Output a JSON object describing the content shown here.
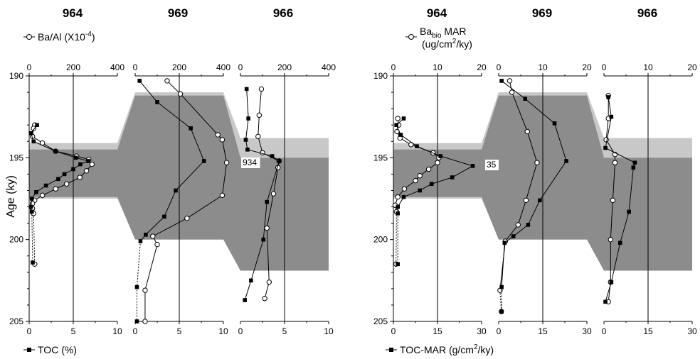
{
  "panels": [
    {
      "id": "left",
      "sites": [
        "964",
        "969",
        "966"
      ],
      "top_legend": {
        "marker": "open-circle",
        "text": "Ba/Al (X10",
        "sup": "-4",
        "tail": ")"
      },
      "bottom_legend": {
        "marker": "filled-square",
        "text": "TOC (%)"
      },
      "y_axis_label": "Age (ky)",
      "y_ticks": [
        "190",
        "195",
        "200",
        "205"
      ],
      "top_ticks": [
        [
          "0",
          "200",
          "400"
        ],
        [
          "0",
          "200",
          "400"
        ],
        [
          "0",
          "200",
          "400"
        ]
      ],
      "bottom_ticks": [
        [
          "0",
          "5",
          "10"
        ],
        [
          "0",
          "5",
          "10"
        ],
        [
          "0",
          "5",
          "10"
        ]
      ],
      "label_box": "934"
    },
    {
      "id": "right",
      "sites": [
        "964",
        "969",
        "966"
      ],
      "top_legend": {
        "marker": "open-circle",
        "text": "Ba",
        "sub": "bio",
        "text2": " MAR",
        "line2": "(ug/cm",
        "sup2": "2",
        "line2b": "/ky)"
      },
      "bottom_legend": {
        "marker": "filled-square",
        "text": "TOC-MAR (g/cm",
        "sup": "2",
        "tail": "/ky)"
      },
      "y_ticks": [
        "190",
        "195",
        "200",
        "205"
      ],
      "top_ticks": [
        [
          "0",
          "10",
          "20"
        ],
        [
          "0",
          "10",
          "20"
        ],
        [
          "0",
          "10",
          "20"
        ]
      ],
      "bottom_ticks": [
        [
          "0",
          "15",
          "30"
        ],
        [
          "0",
          "15",
          "30"
        ],
        [
          "0",
          "15",
          "30"
        ]
      ],
      "label_box": "35"
    }
  ],
  "chart_data": [
    {
      "type": "line",
      "title": "",
      "ylabel": "Age (ky)",
      "ylim": [
        190,
        205
      ],
      "y_inverted": true,
      "shading": {
        "light_gray_band_ky": [
          [
            194.2,
            194.5
          ],
          [
            194.2,
            195.5
          ]
        ],
        "dark_gray_sapropel": true
      },
      "subplots": [
        {
          "site": "964",
          "top_axis": {
            "label": "Ba/Al (X10^-4)",
            "range": [
              0,
              400
            ]
          },
          "bottom_axis": {
            "label": "TOC (%)",
            "range": [
              0,
              10
            ]
          },
          "ba_al": [
            [
              193.0,
              25
            ],
            [
              193.2,
              20
            ],
            [
              193.7,
              15
            ],
            [
              194.1,
              60
            ],
            [
              194.6,
              120
            ],
            [
              194.9,
              215
            ],
            [
              195.1,
              270
            ],
            [
              195.4,
              285
            ],
            [
              195.8,
              260
            ],
            [
              196.2,
              230
            ],
            [
              196.6,
              170
            ],
            [
              196.9,
              120
            ],
            [
              197.3,
              60
            ],
            [
              197.6,
              25
            ],
            [
              197.8,
              15
            ],
            [
              198.1,
              15
            ],
            [
              198.4,
              20
            ],
            [
              201.5,
              25
            ]
          ],
          "toc": [
            [
              193.0,
              0.9
            ],
            [
              193.5,
              0.2
            ],
            [
              194.0,
              0.5
            ],
            [
              194.6,
              3.0
            ],
            [
              195.0,
              5.3
            ],
            [
              195.2,
              6.7
            ],
            [
              195.4,
              5.8
            ],
            [
              195.7,
              5.0
            ],
            [
              196.0,
              4.0
            ],
            [
              196.3,
              3.3
            ],
            [
              196.7,
              1.9
            ],
            [
              197.1,
              0.8
            ],
            [
              197.5,
              0.3
            ],
            [
              198.0,
              0.2
            ],
            [
              198.3,
              0.3
            ],
            [
              201.4,
              0.4
            ]
          ]
        },
        {
          "site": "969",
          "top_axis": {
            "label": "Ba/Al (X10^-4)",
            "range": [
              0,
              400
            ]
          },
          "bottom_axis": {
            "label": "TOC (%)",
            "range": [
              0,
              10
            ]
          },
          "ba_al": [
            [
              190.3,
              145
            ],
            [
              191.1,
              205
            ],
            [
              193.6,
              375
            ],
            [
              193.9,
              395
            ],
            [
              195.3,
              415
            ],
            [
              197.3,
              395
            ],
            [
              198.7,
              235
            ],
            [
              199.8,
              80
            ],
            [
              200.3,
              100
            ],
            [
              203.1,
              45
            ],
            [
              205.0,
              45
            ]
          ],
          "toc": [
            [
              190.3,
              0.5
            ],
            [
              191.6,
              2.5
            ],
            [
              193.2,
              6.3
            ],
            [
              195.2,
              7.8
            ],
            [
              197.0,
              4.6
            ],
            [
              198.6,
              3.3
            ],
            [
              199.7,
              1.2
            ],
            [
              200.1,
              0.6
            ],
            [
              202.9,
              0.2
            ],
            [
              205.0,
              0.2
            ]
          ]
        },
        {
          "site": "966",
          "top_axis": {
            "label": "Ba/Al (X10^-4)",
            "range": [
              0,
              400
            ]
          },
          "bottom_axis": {
            "label": "TOC (%)",
            "range": [
              0,
              10
            ]
          },
          "ba_al": [
            [
              190.8,
              95
            ],
            [
              192.4,
              85
            ],
            [
              193.7,
              80
            ],
            [
              194.7,
              100
            ],
            [
              195.2,
              175
            ],
            [
              195.6,
              170
            ],
            [
              197.2,
              150
            ],
            [
              199.3,
              120
            ],
            [
              202.6,
              130
            ],
            [
              203.6,
              110
            ]
          ],
          "toc": [
            [
              190.8,
              0.7
            ],
            [
              192.6,
              0.9
            ],
            [
              193.9,
              0.6
            ],
            [
              194.5,
              0.8
            ],
            [
              194.9,
              3.6
            ],
            [
              195.2,
              4.4
            ],
            [
              197.7,
              3.0
            ],
            [
              200.0,
              2.6
            ],
            [
              202.5,
              1.2
            ],
            [
              203.7,
              0.5
            ]
          ]
        }
      ]
    },
    {
      "type": "line",
      "title": "",
      "ylabel": "",
      "ylim": [
        190,
        205
      ],
      "y_inverted": true,
      "subplots": [
        {
          "site": "964",
          "top_axis": {
            "label": "Ba_bio MAR (ug/cm2/ky)",
            "range": [
              0,
              20
            ]
          },
          "bottom_axis": {
            "label": "TOC-MAR (g/cm2/ky)",
            "range": [
              0,
              30
            ]
          },
          "ba_bio_mar": [
            [
              192.6,
              1.0
            ],
            [
              193.0,
              1.2
            ],
            [
              193.4,
              0.8
            ],
            [
              193.8,
              1.5
            ],
            [
              194.2,
              4.0
            ],
            [
              194.7,
              9.0
            ],
            [
              195.0,
              10.3
            ],
            [
              195.3,
              10.0
            ],
            [
              195.7,
              8.0
            ],
            [
              196.1,
              6.0
            ],
            [
              196.4,
              5.0
            ],
            [
              196.9,
              2.5
            ],
            [
              197.4,
              1.0
            ],
            [
              197.9,
              0.4
            ],
            [
              198.3,
              0.7
            ],
            [
              201.5,
              0.6
            ]
          ],
          "toc_mar": [
            [
              192.6,
              3.5
            ],
            [
              193.0,
              1.0
            ],
            [
              193.6,
              2.5
            ],
            [
              194.3,
              8.0
            ],
            [
              194.9,
              16.0
            ],
            [
              195.5,
              27.0
            ],
            [
              196.2,
              20.0
            ],
            [
              196.6,
              13.0
            ],
            [
              197.0,
              9.0
            ],
            [
              197.4,
              3.5
            ],
            [
              198.0,
              1.5
            ],
            [
              198.4,
              1.5
            ],
            [
              201.5,
              1.5
            ]
          ]
        },
        {
          "site": "969",
          "top_axis": {
            "label": "Ba_bio MAR (ug/cm2/ky)",
            "range": [
              0,
              20
            ]
          },
          "bottom_axis": {
            "label": "TOC-MAR (g/cm2/ky)",
            "range": [
              0,
              30
            ]
          },
          "ba_bio_mar": [
            [
              190.3,
              2.5
            ],
            [
              191.0,
              3.0
            ],
            [
              193.4,
              6.5
            ],
            [
              195.3,
              8.7
            ],
            [
              197.6,
              6.2
            ],
            [
              199.1,
              4.4
            ],
            [
              200.1,
              1.5
            ],
            [
              203.1,
              0.3
            ],
            [
              204.4,
              0.6
            ]
          ],
          "toc_mar": [
            [
              190.3,
              1.0
            ],
            [
              191.4,
              9.0
            ],
            [
              192.9,
              19.0
            ],
            [
              195.2,
              23.0
            ],
            [
              197.6,
              14.0
            ],
            [
              199.1,
              10.0
            ],
            [
              199.8,
              5.0
            ],
            [
              200.2,
              2.0
            ],
            [
              202.9,
              1.0
            ],
            [
              204.4,
              1.0
            ]
          ]
        },
        {
          "site": "966",
          "top_axis": {
            "label": "Ba_bio MAR (ug/cm2/ky)",
            "range": [
              0,
              20
            ]
          },
          "bottom_axis": {
            "label": "TOC-MAR (g/cm2/ky)",
            "range": [
              0,
              30
            ]
          },
          "ba_bio_mar": [
            [
              191.2,
              1.0
            ],
            [
              192.6,
              1.0
            ],
            [
              193.9,
              0.5
            ],
            [
              194.8,
              2.5
            ],
            [
              195.3,
              2.5
            ],
            [
              197.6,
              2.0
            ],
            [
              200.0,
              1.5
            ],
            [
              202.6,
              1.5
            ],
            [
              203.8,
              1.0
            ]
          ],
          "toc_mar": [
            [
              191.3,
              1.5
            ],
            [
              192.5,
              2.5
            ],
            [
              194.4,
              0.5
            ],
            [
              195.3,
              10.5
            ],
            [
              195.6,
              10.0
            ],
            [
              198.3,
              8.5
            ],
            [
              200.2,
              5.5
            ],
            [
              202.6,
              2.5
            ],
            [
              203.8,
              0.5
            ]
          ]
        }
      ]
    }
  ]
}
